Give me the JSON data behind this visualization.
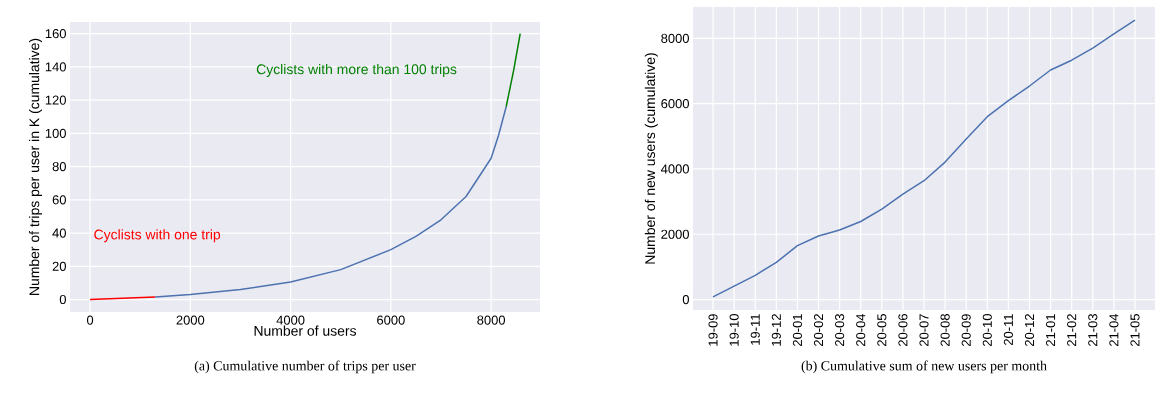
{
  "chart_data": [
    {
      "type": "line",
      "title": "(a) Cumulative number of trips per user",
      "xlabel": "Number of users",
      "ylabel": "Number of trips per user in K (cumulative)",
      "xlim": [
        -400,
        8975
      ],
      "ylim": [
        -7.5,
        167
      ],
      "xticks": [
        0,
        2000,
        4000,
        6000,
        8000
      ],
      "yticks": [
        0,
        20,
        40,
        60,
        80,
        100,
        120,
        140,
        160
      ],
      "grid": true,
      "series": [
        {
          "name": "Cyclists with one trip",
          "color": "#ff0000",
          "x": [
            0,
            650,
            1300
          ],
          "values": [
            0,
            0.7,
            1.5
          ]
        },
        {
          "color": "#4c72b0",
          "x": [
            1300,
            2000,
            3000,
            4000,
            5000,
            6000,
            6500,
            7000,
            7500,
            8000,
            8150,
            8300
          ],
          "values": [
            1.5,
            3,
            6,
            10.5,
            18,
            30,
            38,
            48,
            62,
            85,
            99,
            116
          ]
        },
        {
          "name": "Cyclists with more than 100 trips",
          "color": "#008000",
          "x": [
            8300,
            8450,
            8580
          ],
          "values": [
            116,
            138,
            160
          ]
        }
      ]
    },
    {
      "type": "line",
      "title": "(b) Cumulative sum of new users per month",
      "ylabel": "Number of new users (cumulative)",
      "categories": [
        "19-09",
        "19-10",
        "19-11",
        "19-12",
        "20-01",
        "20-02",
        "20-03",
        "20-04",
        "20-05",
        "20-06",
        "20-07",
        "20-08",
        "20-09",
        "20-10",
        "20-11",
        "20-12",
        "21-01",
        "21-02",
        "21-03",
        "21-04",
        "21-05"
      ],
      "ylim": [
        -320,
        8960
      ],
      "yticks": [
        0,
        2000,
        4000,
        6000,
        8000
      ],
      "grid": true,
      "series": [
        {
          "color": "#4c72b0",
          "values": [
            80,
            410,
            740,
            1140,
            1650,
            1945,
            2130,
            2390,
            2770,
            3230,
            3640,
            4210,
            4920,
            5600,
            6090,
            6540,
            7030,
            7330,
            7700,
            8140,
            8560
          ]
        }
      ]
    }
  ]
}
